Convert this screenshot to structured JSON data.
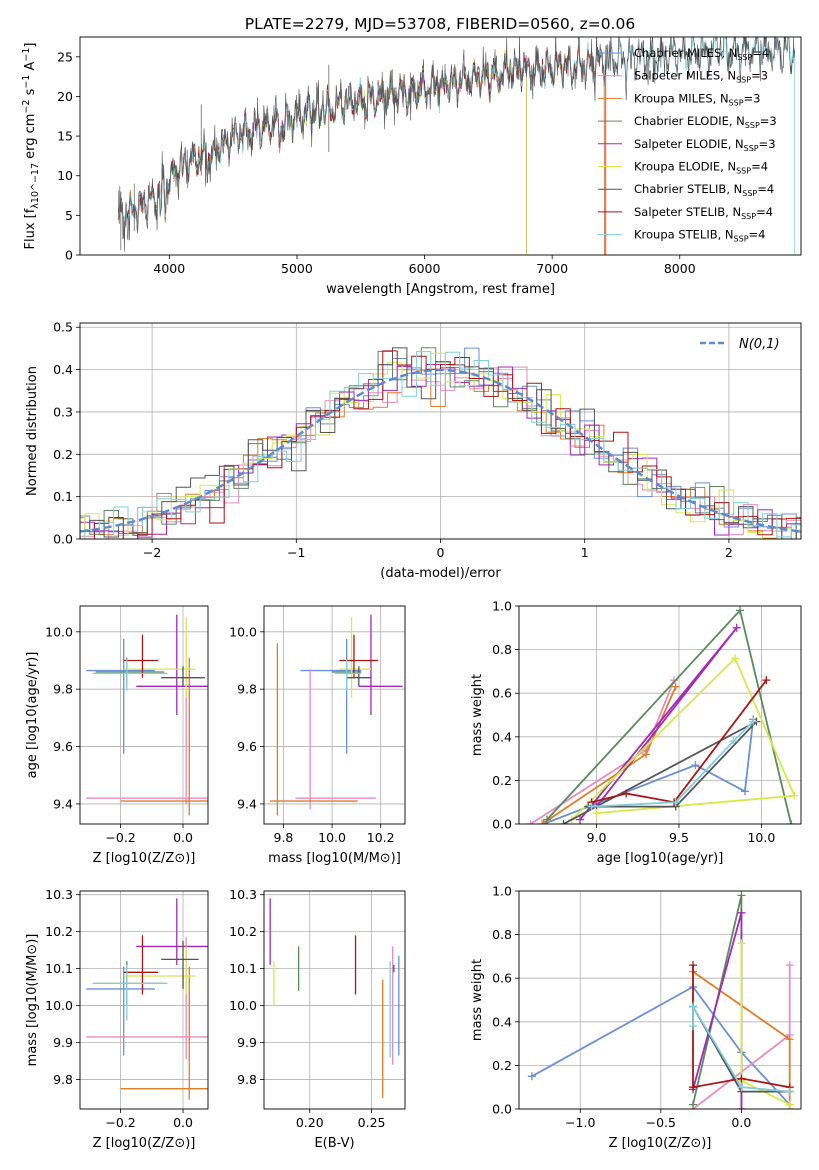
{
  "title": "PLATE=2279, MJD=53708, FIBERID=0560, z=0.06",
  "colors": {
    "chabrier_miles": "#6a8fd8",
    "salpeter_miles": "#e98bbd",
    "kroupa_miles": "#e07b2a",
    "chabrier_elodie": "#5b8a5e",
    "salpeter_elodie": "#a329b9",
    "kroupa_elodie": "#d4ea4a",
    "chabrier_stelib": "#555555",
    "salpeter_stelib": "#ab1515",
    "kroupa_stelib": "#7fcfdc",
    "normal": "#5a8ad1",
    "grid": "#b0b0b0"
  },
  "chart_data": [
    {
      "id": "spectrum",
      "type": "line",
      "xlabel": "wavelength [Angstrom, rest frame]",
      "ylabel": "Flux [f_λ10^−17 erg cm^−2 s^−1 A^−1]",
      "xlim": [
        3300,
        8950
      ],
      "ylim": [
        0,
        27.5
      ],
      "xticks": [
        4000,
        5000,
        6000,
        7000,
        8000
      ],
      "yticks": [
        0,
        5,
        10,
        15,
        20,
        25
      ],
      "grid": false,
      "legend": "upper right",
      "continuum_knots": {
        "x": [
          3600,
          3700,
          3800,
          3900,
          4000,
          4100,
          4300,
          4500,
          4800,
          5000,
          5200,
          5500,
          5800,
          6000,
          6300,
          6600,
          7000,
          7400,
          7800,
          8200,
          8900
        ],
        "y": [
          5.0,
          5.5,
          6.5,
          7.5,
          9.5,
          11.5,
          12.5,
          15.0,
          16.5,
          17.5,
          18.5,
          19.5,
          20.5,
          21.0,
          22.0,
          23.0,
          23.5,
          24.5,
          25.0,
          25.5,
          26.0
        ]
      },
      "series": [
        {
          "name": "Chabrier MILES, N_SSP=4",
          "color_key": "chabrier_miles"
        },
        {
          "name": "Salpeter MILES, N_SSP=3",
          "color_key": "salpeter_miles"
        },
        {
          "name": "Kroupa MILES, N_SSP=3",
          "color_key": "kroupa_miles"
        },
        {
          "name": "Chabrier ELODIE, N_SSP=3",
          "color_key": "chabrier_elodie"
        },
        {
          "name": "Salpeter ELODIE, N_SSP=3",
          "color_key": "salpeter_elodie"
        },
        {
          "name": "Kroupa ELODIE, N_SSP=4",
          "color_key": "kroupa_elodie"
        },
        {
          "name": "Chabrier STELIB, N_SSP=4",
          "color_key": "chabrier_stelib"
        },
        {
          "name": "Salpeter STELIB, N_SSP=4",
          "color_key": "salpeter_stelib"
        },
        {
          "name": "Kroupa STELIB, N_SSP=4",
          "color_key": "kroupa_stelib"
        }
      ],
      "model_ranges": {
        "chabrier_miles": [
          3540,
          7410
        ],
        "salpeter_miles": [
          3540,
          7410
        ],
        "kroupa_miles": [
          3540,
          7410
        ],
        "chabrier_elodie": [
          3900,
          6800
        ],
        "salpeter_elodie": [
          3900,
          6800
        ],
        "kroupa_elodie": [
          3900,
          6800
        ],
        "salpeter_stelib": [
          3600,
          7420
        ],
        "kroupa_stelib": [
          3600,
          8900
        ]
      },
      "data_range": [
        3600,
        8900
      ]
    },
    {
      "id": "residuals",
      "type": "bar",
      "xlabel": "(data-model)/error",
      "ylabel": "Normed distribution",
      "xlim": [
        -2.5,
        2.5
      ],
      "ylim": [
        0,
        0.51
      ],
      "xticks": [
        -2,
        -1,
        0,
        1,
        2
      ],
      "yticks": [
        0.0,
        0.1,
        0.2,
        0.3,
        0.4,
        0.5
      ],
      "grid": true,
      "legend": "upper right",
      "normal_label": "N(0,1)",
      "bin_width": 0.1,
      "histtype": "step"
    },
    {
      "id": "z-age",
      "type": "scatter",
      "xlabel": "Z [log10(Z/Z⊙)]",
      "ylabel": "age [log10(age/yr)]",
      "xlim": [
        -0.33,
        0.08
      ],
      "ylim": [
        9.33,
        10.09
      ],
      "xticks": [
        -0.2,
        0.0
      ],
      "yticks": [
        9.4,
        9.6,
        9.8,
        10.0
      ],
      "grid": true,
      "points": [
        {
          "x": -0.19,
          "y": 9.865,
          "xerr": [
            0.12,
            0.1
          ],
          "yerr": [
            0.29,
            0.11
          ],
          "color_key": "chabrier_miles"
        },
        {
          "x": 0.01,
          "y": 9.42,
          "xerr": [
            0.32,
            0.07
          ],
          "yerr": [
            0.02,
            0.45
          ],
          "color_key": "salpeter_miles"
        },
        {
          "x": 0.02,
          "y": 9.41,
          "xerr": [
            0.22,
            0.06
          ],
          "yerr": [
            0.05,
            0.5
          ],
          "color_key": "kroupa_miles"
        },
        {
          "x": -0.18,
          "y": 9.86,
          "xerr": [
            0.1,
            0.12
          ],
          "yerr": [
            0.04,
            0.05
          ],
          "color_key": "chabrier_elodie"
        },
        {
          "x": -0.02,
          "y": 9.81,
          "xerr": [
            0.13,
            0.11
          ],
          "yerr": [
            0.1,
            0.25
          ],
          "color_key": "salpeter_elodie"
        },
        {
          "x": 0.01,
          "y": 9.87,
          "xerr": [
            0.2,
            0.03
          ],
          "yerr": [
            0.1,
            0.18
          ],
          "color_key": "kroupa_elodie"
        },
        {
          "x": 0.0,
          "y": 9.84,
          "xerr": [
            0.07,
            0.07
          ],
          "yerr": [
            0.03,
            0.04
          ],
          "color_key": "chabrier_stelib"
        },
        {
          "x": -0.13,
          "y": 9.9,
          "xerr": [
            0.06,
            0.05
          ],
          "yerr": [
            0.06,
            0.09
          ],
          "color_key": "salpeter_stelib"
        },
        {
          "x": -0.18,
          "y": 9.855,
          "xerr": [
            0.11,
            0.13
          ],
          "yerr": [
            0.06,
            0.05
          ],
          "color_key": "kroupa_stelib"
        }
      ]
    },
    {
      "id": "mass-age",
      "type": "scatter",
      "xlabel": "mass [log10(M/M⊙)]",
      "ylabel": "",
      "xlim": [
        9.72,
        10.3
      ],
      "ylim": [
        9.33,
        10.09
      ],
      "xticks": [
        9.8,
        10.0,
        10.2
      ],
      "yticks": [
        9.4,
        9.6,
        9.8,
        10.0
      ],
      "grid": true,
      "points": [
        {
          "x": 10.06,
          "y": 9.865,
          "xerr": [
            0.19,
            0.06
          ],
          "yerr": [
            0.29,
            0.11
          ],
          "color_key": "chabrier_miles"
        },
        {
          "x": 9.91,
          "y": 9.42,
          "xerr": [
            0.06,
            0.27
          ],
          "yerr": [
            0.04,
            0.45
          ],
          "color_key": "salpeter_miles"
        },
        {
          "x": 9.775,
          "y": 9.41,
          "xerr": [
            0.03,
            0.33
          ],
          "yerr": [
            0.05,
            0.55
          ],
          "color_key": "kroupa_miles"
        },
        {
          "x": 10.06,
          "y": 9.86,
          "xerr": [
            0.06,
            0.06
          ],
          "yerr": [
            0.04,
            0.05
          ],
          "color_key": "chabrier_elodie"
        },
        {
          "x": 10.16,
          "y": 9.81,
          "xerr": [
            0.05,
            0.13
          ],
          "yerr": [
            0.1,
            0.25
          ],
          "color_key": "salpeter_elodie"
        },
        {
          "x": 10.08,
          "y": 9.87,
          "xerr": [
            0.05,
            0.08
          ],
          "yerr": [
            0.1,
            0.18
          ],
          "color_key": "kroupa_elodie"
        },
        {
          "x": 10.11,
          "y": 9.84,
          "xerr": [
            0.05,
            0.05
          ],
          "yerr": [
            0.03,
            0.04
          ],
          "color_key": "chabrier_stelib"
        },
        {
          "x": 10.09,
          "y": 9.9,
          "xerr": [
            0.06,
            0.1
          ],
          "yerr": [
            0.06,
            0.09
          ],
          "color_key": "salpeter_stelib"
        },
        {
          "x": 10.06,
          "y": 9.855,
          "xerr": [
            0.05,
            0.06
          ],
          "yerr": [
            0.06,
            0.05
          ],
          "color_key": "kroupa_stelib"
        }
      ]
    },
    {
      "id": "age-weight",
      "type": "line",
      "xlabel": "age [log10(age/yr)]",
      "ylabel": "mass weight",
      "xlim": [
        8.53,
        10.24
      ],
      "ylim": [
        0,
        1.0
      ],
      "xticks": [
        9.0,
        9.5,
        10.0
      ],
      "yticks": [
        0.0,
        0.2,
        0.4,
        0.6,
        0.8,
        1.0
      ],
      "grid": true,
      "series": [
        {
          "color_key": "chabrier_miles",
          "x": [
            8.68,
            9.6,
            9.9,
            9.95
          ],
          "y": [
            0.0,
            0.27,
            0.15,
            0.48
          ]
        },
        {
          "color_key": "salpeter_miles",
          "x": [
            8.6,
            9.3,
            9.47
          ],
          "y": [
            0.0,
            0.34,
            0.66
          ]
        },
        {
          "color_key": "kroupa_miles",
          "x": [
            8.67,
            9.3,
            9.48
          ],
          "y": [
            0.0,
            0.32,
            0.63
          ]
        },
        {
          "color_key": "chabrier_elodie",
          "x": [
            8.7,
            9.87,
            10.18
          ],
          "y": [
            0.02,
            0.98,
            0.0
          ]
        },
        {
          "color_key": "salpeter_elodie",
          "x": [
            8.9,
            9.85,
            9.0
          ],
          "y": [
            0.02,
            0.9,
            0.08
          ]
        },
        {
          "color_key": "kroupa_elodie",
          "x": [
            8.85,
            9.84,
            10.2,
            9.0
          ],
          "y": [
            0.02,
            0.76,
            0.13,
            0.05
          ]
        },
        {
          "color_key": "chabrier_stelib",
          "x": [
            8.95,
            9.48,
            9.97,
            8.8
          ],
          "y": [
            0.08,
            0.08,
            0.47,
            0.0
          ]
        },
        {
          "color_key": "salpeter_stelib",
          "x": [
            8.97,
            9.18,
            9.47,
            10.03
          ],
          "y": [
            0.1,
            0.14,
            0.1,
            0.66
          ]
        },
        {
          "color_key": "kroupa_stelib",
          "x": [
            8.97,
            9.48,
            9.83,
            9.95
          ],
          "y": [
            0.08,
            0.1,
            0.38,
            0.47
          ]
        }
      ]
    },
    {
      "id": "z-mass",
      "type": "scatter",
      "xlabel": "Z [log10(Z/Z⊙)]",
      "ylabel": "mass [log10(M/M⊙)]",
      "xlim": [
        -0.33,
        0.08
      ],
      "ylim": [
        9.72,
        10.31
      ],
      "xticks": [
        -0.2,
        0.0
      ],
      "yticks": [
        9.8,
        9.9,
        10.0,
        10.1,
        10.2,
        10.3
      ],
      "grid": true,
      "points": [
        {
          "x": -0.19,
          "y": 10.045,
          "xerr": [
            0.12,
            0.1
          ],
          "yerr": [
            0.18,
            0.06
          ],
          "color_key": "chabrier_miles"
        },
        {
          "x": 0.01,
          "y": 9.915,
          "xerr": [
            0.32,
            0.11
          ],
          "yerr": [
            0.06,
            0.27
          ],
          "color_key": "salpeter_miles"
        },
        {
          "x": 0.02,
          "y": 9.775,
          "xerr": [
            0.22,
            0.06
          ],
          "yerr": [
            0.03,
            0.33
          ],
          "color_key": "kroupa_miles"
        },
        {
          "x": -0.18,
          "y": 10.06,
          "xerr": [
            0.1,
            0.12
          ],
          "yerr": [
            0.06,
            0.06
          ],
          "color_key": "chabrier_elodie"
        },
        {
          "x": -0.02,
          "y": 10.16,
          "xerr": [
            0.13,
            0.11
          ],
          "yerr": [
            0.05,
            0.13
          ],
          "color_key": "salpeter_elodie"
        },
        {
          "x": 0.01,
          "y": 10.08,
          "xerr": [
            0.2,
            0.03
          ],
          "yerr": [
            0.05,
            0.08
          ],
          "color_key": "kroupa_elodie"
        },
        {
          "x": 0.0,
          "y": 10.125,
          "xerr": [
            0.07,
            0.05
          ],
          "yerr": [
            0.08,
            0.05
          ],
          "color_key": "chabrier_stelib"
        },
        {
          "x": -0.13,
          "y": 10.09,
          "xerr": [
            0.06,
            0.05
          ],
          "yerr": [
            0.06,
            0.1
          ],
          "color_key": "salpeter_stelib"
        },
        {
          "x": -0.18,
          "y": 10.06,
          "xerr": [
            0.11,
            0.13
          ],
          "yerr": [
            0.1,
            0.05
          ],
          "color_key": "kroupa_stelib"
        }
      ]
    },
    {
      "id": "ebv-mass",
      "type": "scatter",
      "xlabel": "E(B-V)",
      "ylabel": "",
      "xlim": [
        0.163,
        0.277
      ],
      "ylim": [
        9.72,
        10.31
      ],
      "xticks": [
        0.2,
        0.25
      ],
      "yticks": [
        9.8,
        9.9,
        10.0,
        10.1,
        10.2,
        10.3
      ],
      "grid": true,
      "points": [
        {
          "x": 0.272,
          "y": 10.045,
          "yerr": [
            0.18,
            0.09
          ],
          "color_key": "chabrier_miles"
        },
        {
          "x": 0.168,
          "y": 10.2,
          "yerr": [
            0.09,
            0.09
          ],
          "color_key": "salpeter_elodie"
        },
        {
          "x": 0.171,
          "y": 10.05,
          "yerr": [
            0.05,
            0.07
          ],
          "color_key": "kroupa_elodie"
        },
        {
          "x": 0.191,
          "y": 10.1,
          "yerr": [
            0.06,
            0.06
          ],
          "color_key": "chabrier_elodie"
        },
        {
          "x": 0.237,
          "y": 10.11,
          "yerr": [
            0.08,
            0.08
          ],
          "color_key": "salpeter_stelib"
        },
        {
          "x": 0.259,
          "y": 9.91,
          "yerr": [
            0.16,
            0.16
          ],
          "color_key": "kroupa_miles"
        },
        {
          "x": 0.265,
          "y": 9.99,
          "yerr": [
            0.13,
            0.13
          ],
          "color_key": "kroupa_stelib"
        },
        {
          "x": 0.267,
          "y": 10.0,
          "yerr": [
            0.16,
            0.16
          ],
          "color_key": "salpeter_miles"
        },
        {
          "x": 0.268,
          "y": 10.1,
          "yerr": [
            0.01,
            0.01
          ],
          "color_key": "chabrier_stelib"
        }
      ]
    },
    {
      "id": "z-weight",
      "type": "line",
      "xlabel": "Z [log10(Z/Z⊙)]",
      "ylabel": "mass weight",
      "xlim": [
        -1.38,
        0.37
      ],
      "ylim": [
        0,
        1.0
      ],
      "xticks": [
        -1.0,
        -0.5,
        0.0
      ],
      "yticks": [
        0.0,
        0.2,
        0.4,
        0.6,
        0.8,
        1.0
      ],
      "grid": true,
      "series": [
        {
          "color_key": "chabrier_miles",
          "x": [
            -1.3,
            -0.3,
            0.0,
            0.3
          ],
          "y": [
            0.15,
            0.56,
            0.26,
            0.02
          ]
        },
        {
          "color_key": "salpeter_miles",
          "x": [
            -0.3,
            0.3,
            0.3
          ],
          "y": [
            0.0,
            0.34,
            0.66
          ]
        },
        {
          "color_key": "kroupa_miles",
          "x": [
            -0.3,
            0.3,
            0.3
          ],
          "y": [
            0.63,
            0.32,
            0.0
          ]
        },
        {
          "color_key": "chabrier_elodie",
          "x": [
            -0.3,
            0.0,
            0.0
          ],
          "y": [
            0.02,
            0.98,
            0.0
          ]
        },
        {
          "color_key": "salpeter_elodie",
          "x": [
            -0.3,
            0.0,
            0.0
          ],
          "y": [
            0.09,
            0.9,
            0.0
          ]
        },
        {
          "color_key": "kroupa_elodie",
          "x": [
            0.0,
            0.0,
            0.3
          ],
          "y": [
            0.76,
            0.13,
            0.02
          ]
        },
        {
          "color_key": "chabrier_stelib",
          "x": [
            -0.3,
            0.0,
            0.3
          ],
          "y": [
            0.47,
            0.08,
            0.08
          ]
        },
        {
          "color_key": "salpeter_stelib",
          "x": [
            -0.3,
            -0.3,
            0.0,
            0.3
          ],
          "y": [
            0.66,
            0.1,
            0.14,
            0.1
          ]
        },
        {
          "color_key": "kroupa_stelib",
          "x": [
            -0.3,
            -0.3,
            0.0,
            0.3
          ],
          "y": [
            0.38,
            0.47,
            0.1,
            0.08
          ]
        }
      ]
    }
  ]
}
